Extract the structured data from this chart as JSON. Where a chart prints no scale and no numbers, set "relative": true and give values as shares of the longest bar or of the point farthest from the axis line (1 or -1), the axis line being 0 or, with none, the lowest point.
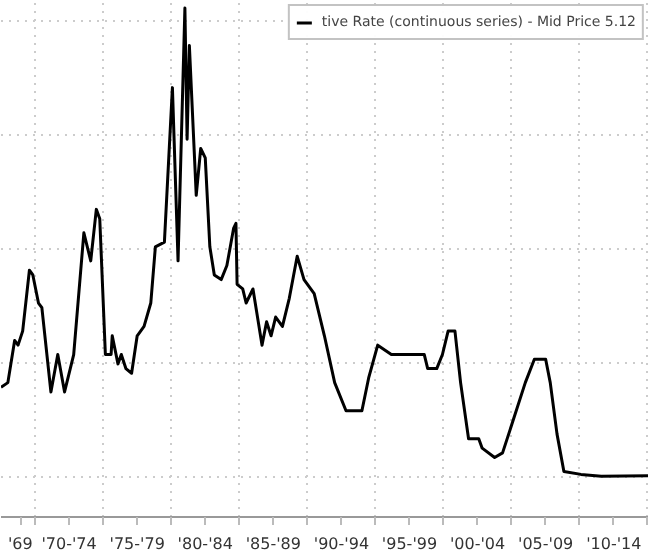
{
  "chart_data": {
    "type": "line",
    "relative": true,
    "grid": true,
    "legend": "top right",
    "xlim": [
      "1967-07",
      "2015-02"
    ],
    "xticks": [
      {
        "value": "1968-12",
        "label": "'69"
      },
      {
        "value": "1970-01",
        "label": null
      },
      {
        "value": "1972-07",
        "label": "'70-'74"
      },
      {
        "value": "1975-01",
        "label": null
      },
      {
        "value": "1977-07",
        "label": "'75-'79"
      },
      {
        "value": "1980-01",
        "label": null
      },
      {
        "value": "1982-07",
        "label": "'80-'84"
      },
      {
        "value": "1985-01",
        "label": null
      },
      {
        "value": "1987-07",
        "label": "'85-'89"
      },
      {
        "value": "1990-01",
        "label": null
      },
      {
        "value": "1992-07",
        "label": "'90-'94"
      },
      {
        "value": "1995-01",
        "label": null
      },
      {
        "value": "1997-07",
        "label": "'95-'99"
      },
      {
        "value": "2000-01",
        "label": null
      },
      {
        "value": "2002-07",
        "label": "'00-'04"
      },
      {
        "value": "2005-01",
        "label": null
      },
      {
        "value": "2007-07",
        "label": "'05-'09"
      },
      {
        "value": "2010-01",
        "label": null
      },
      {
        "value": "2012-07",
        "label": "'10-'14"
      },
      {
        "value": "2015-01",
        "label": null
      }
    ],
    "series": [
      {
        "name": "tive Rate (continuous series) - Mid Price 5.12",
        "color": "#000000",
        "x": [
          "1967-07",
          "1968-01",
          "1968-07",
          "1968-10",
          "1969-02",
          "1969-08",
          "1969-11",
          "1970-04",
          "1970-07",
          "1971-03",
          "1971-09",
          "1972-03",
          "1972-11",
          "1973-08",
          "1974-02",
          "1974-07",
          "1974-10",
          "1975-03",
          "1975-08",
          "1975-09",
          "1976-02",
          "1976-05",
          "1976-09",
          "1977-02",
          "1977-07",
          "1978-01",
          "1978-07",
          "1978-11",
          "1979-07",
          "1980-02",
          "1980-07",
          "1981-01",
          "1981-03",
          "1981-05",
          "1981-11",
          "1982-03",
          "1982-07",
          "1982-11",
          "1983-03",
          "1983-09",
          "1984-02",
          "1984-08",
          "1984-10",
          "1984-11",
          "1985-04",
          "1985-07",
          "1986-01",
          "1986-09",
          "1987-01",
          "1987-05",
          "1987-09",
          "1988-03",
          "1988-09",
          "1989-04",
          "1989-10",
          "1990-07",
          "1991-04",
          "1992-01",
          "1992-11",
          "1994-01",
          "1994-07",
          "1995-03",
          "1996-03",
          "1997-07",
          "1998-08",
          "1998-11",
          "1999-07",
          "1999-12",
          "2000-05",
          "2000-11",
          "2001-04",
          "2001-11",
          "2002-08",
          "2002-11",
          "2003-10",
          "2004-05",
          "2005-01",
          "2006-01",
          "2006-09",
          "2007-07",
          "2007-11",
          "2008-05",
          "2008-11",
          "2010-02",
          "2011-08",
          "2015-02"
        ],
        "values": [
          0.19,
          0.2,
          0.29,
          0.28,
          0.31,
          0.44,
          0.43,
          0.37,
          0.36,
          0.18,
          0.26,
          0.18,
          0.26,
          0.52,
          0.46,
          0.57,
          0.55,
          0.26,
          0.26,
          0.3,
          0.24,
          0.26,
          0.23,
          0.22,
          0.3,
          0.32,
          0.37,
          0.49,
          0.5,
          0.83,
          0.46,
          1.0,
          0.72,
          0.92,
          0.6,
          0.7,
          0.68,
          0.49,
          0.43,
          0.42,
          0.45,
          0.53,
          0.54,
          0.41,
          0.4,
          0.37,
          0.4,
          0.28,
          0.33,
          0.3,
          0.34,
          0.32,
          0.38,
          0.47,
          0.42,
          0.39,
          0.3,
          0.2,
          0.14,
          0.14,
          0.21,
          0.28,
          0.26,
          0.26,
          0.26,
          0.23,
          0.23,
          0.26,
          0.31,
          0.31,
          0.2,
          0.08,
          0.08,
          0.06,
          0.04,
          0.05,
          0.11,
          0.2,
          0.25,
          0.25,
          0.2,
          0.09,
          0.01,
          0.004,
          0.0,
          0.001
        ]
      }
    ]
  }
}
